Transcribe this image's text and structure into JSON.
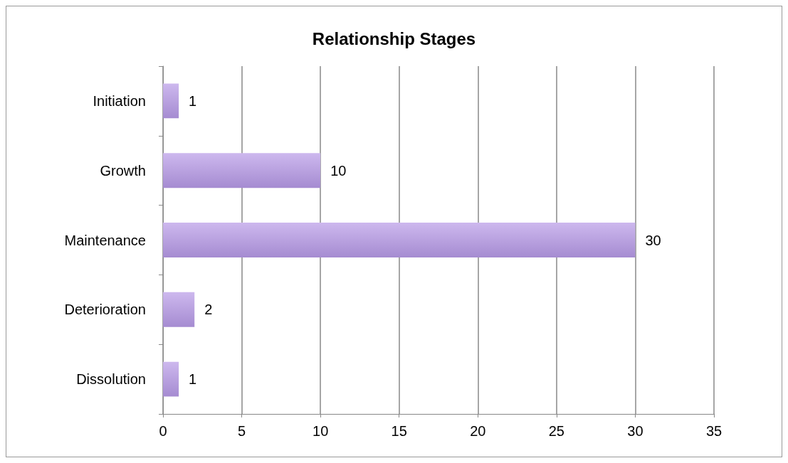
{
  "chart_data": {
    "type": "bar",
    "title": "Relationship Stages",
    "orientation": "horizontal",
    "categories": [
      "Initiation",
      "Growth",
      "Maintenance",
      "Deterioration",
      "Dissolution"
    ],
    "values": [
      1,
      10,
      30,
      2,
      1
    ],
    "color": "#a58bd1",
    "xlim": [
      0,
      35
    ],
    "xticks": [
      0,
      5,
      10,
      15,
      20,
      25,
      30,
      35
    ],
    "grid": "x",
    "data_labels": true
  }
}
